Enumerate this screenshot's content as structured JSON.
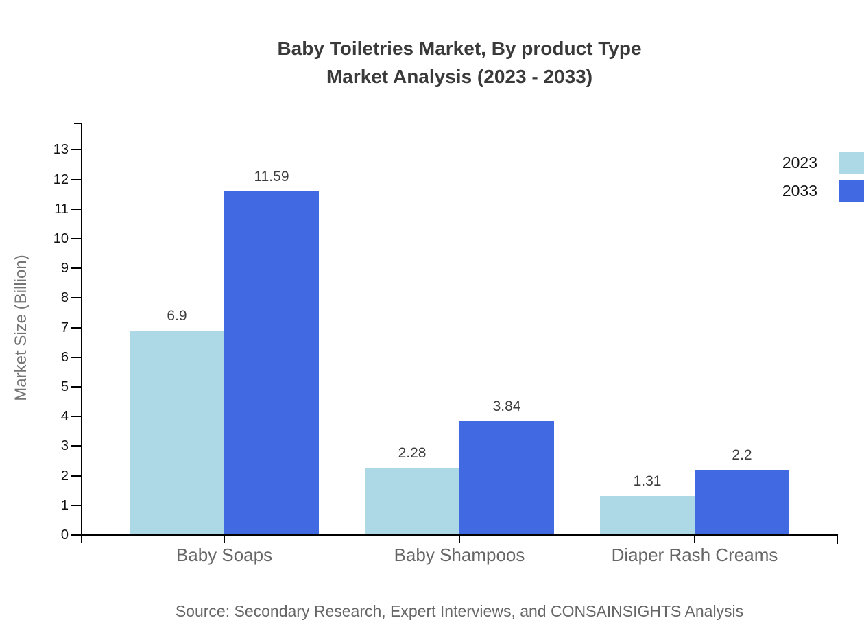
{
  "title": {
    "line1": "Baby Toiletries Market, By product Type",
    "line2": "Market Analysis (2023 - 2033)"
  },
  "chart_data": {
    "type": "bar",
    "categories": [
      "Baby Soaps",
      "Baby Shampoos",
      "Diaper Rash Creams"
    ],
    "series": [
      {
        "name": "2023",
        "color": "#add8e6",
        "values": [
          6.9,
          2.28,
          1.31
        ]
      },
      {
        "name": "2033",
        "color": "#4169e1",
        "values": [
          11.59,
          3.84,
          2.2
        ]
      }
    ],
    "value_labels": [
      [
        "6.9",
        "2.28",
        "1.31"
      ],
      [
        "11.59",
        "3.84",
        "2.2"
      ]
    ],
    "ylabel": "Market Size (Billion)",
    "xlabel": "",
    "ylim": [
      0,
      13
    ],
    "ytick_step": 1,
    "yticks": [
      0,
      1,
      2,
      3,
      4,
      5,
      6,
      7,
      8,
      9,
      10,
      11,
      12,
      13
    ],
    "grid": false,
    "legend_position": "top-right"
  },
  "source": "Source: Secondary Research, Expert Interviews, and CONSAINSIGHTS Analysis",
  "colors": {
    "series_2023": "#add8e6",
    "series_2033": "#4169e1",
    "axis": "#000000",
    "tick_text": "#111111",
    "category_text": "#666666",
    "value_text": "#3d3d3d",
    "title_text": "#3a3a3a",
    "muted_text": "#666666",
    "background": "#ffffff"
  }
}
